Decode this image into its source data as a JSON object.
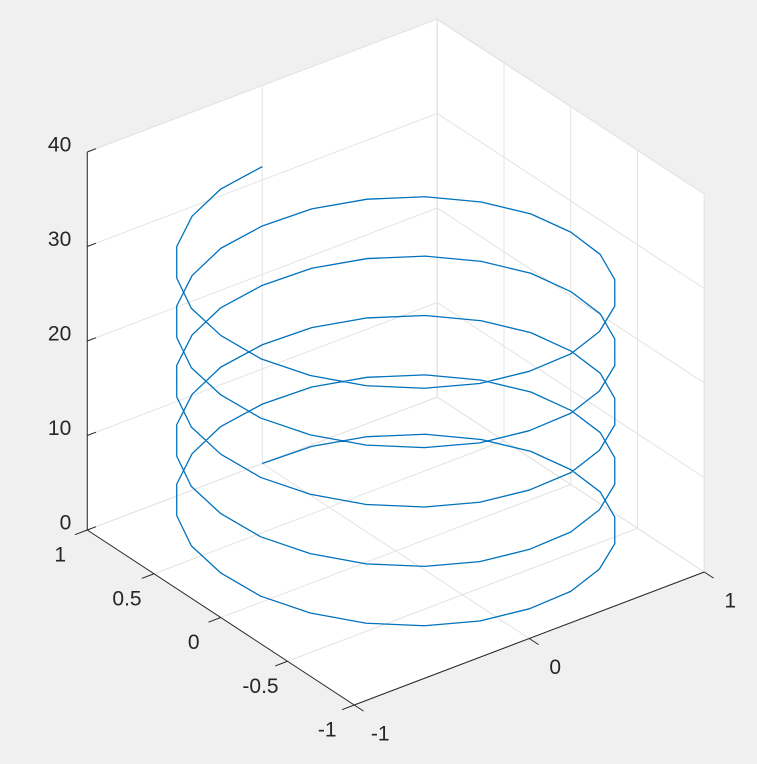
{
  "chart_data": {
    "type": "line3d",
    "color": "#0072bd",
    "grid": true,
    "xlim": [
      -1,
      1
    ],
    "ylim": [
      -1,
      1
    ],
    "zlim": [
      0,
      40
    ],
    "xticks": [
      -1,
      0,
      1
    ],
    "yticks": [
      -1,
      -0.5,
      0,
      0.5,
      1
    ],
    "zticks": [
      0,
      10,
      20,
      30,
      40
    ],
    "x": [
      0,
      0.26,
      0.5,
      0.71,
      0.87,
      0.97,
      1,
      0.97,
      0.87,
      0.71,
      0.5,
      0.26,
      0,
      -0.26,
      -0.5,
      -0.71,
      -0.87,
      -0.97,
      -1,
      -0.97,
      -0.87,
      -0.71,
      -0.5,
      -0.26,
      0,
      0.26,
      0.5,
      0.71,
      0.87,
      0.97,
      1,
      0.97,
      0.87,
      0.71,
      0.5,
      0.26,
      0,
      -0.26,
      -0.5,
      -0.71,
      -0.87,
      -0.97,
      -1,
      -0.97,
      -0.87,
      -0.71,
      -0.5,
      -0.26,
      0,
      0.26,
      0.5,
      0.71,
      0.87,
      0.97,
      1,
      0.97,
      0.87,
      0.71,
      0.5,
      0.26,
      0,
      -0.26,
      -0.5,
      -0.71,
      -0.87,
      -0.97,
      -1,
      -0.97,
      -0.87,
      -0.71,
      -0.5,
      -0.26,
      0,
      0.26,
      0.5,
      0.71,
      0.87,
      0.97,
      1,
      0.97,
      0.87,
      0.71,
      0.5,
      0.26,
      0,
      -0.26,
      -0.5,
      -0.71,
      -0.87,
      -0.97,
      -1,
      -0.97,
      -0.87,
      -0.71,
      -0.5,
      -0.26,
      0,
      0.26,
      0.5,
      0.71,
      0.87,
      0.97,
      1,
      0.97,
      0.87,
      0.71,
      0.5,
      0.26,
      0,
      -0.26,
      -0.5,
      -0.71,
      -0.87,
      -0.97,
      -1,
      -0.97,
      -0.87,
      -0.71,
      -0.5,
      -0.26,
      0
    ],
    "y": [
      1,
      0.97,
      0.87,
      0.71,
      0.5,
      0.26,
      0,
      -0.26,
      -0.5,
      -0.71,
      -0.87,
      -0.97,
      -1,
      -0.97,
      -0.87,
      -0.71,
      -0.5,
      -0.26,
      0,
      0.26,
      0.5,
      0.71,
      0.87,
      0.97,
      1,
      0.97,
      0.87,
      0.71,
      0.5,
      0.26,
      0,
      -0.26,
      -0.5,
      -0.71,
      -0.87,
      -0.97,
      -1,
      -0.97,
      -0.87,
      -0.71,
      -0.5,
      -0.26,
      0,
      0.26,
      0.5,
      0.71,
      0.87,
      0.97,
      1,
      0.97,
      0.87,
      0.71,
      0.5,
      0.26,
      0,
      -0.26,
      -0.5,
      -0.71,
      -0.87,
      -0.97,
      -1,
      -0.97,
      -0.87,
      -0.71,
      -0.5,
      -0.26,
      0,
      0.26,
      0.5,
      0.71,
      0.87,
      0.97,
      1,
      0.97,
      0.87,
      0.71,
      0.5,
      0.26,
      0,
      -0.26,
      -0.5,
      -0.71,
      -0.87,
      -0.97,
      -1,
      -0.97,
      -0.87,
      -0.71,
      -0.5,
      -0.26,
      0,
      0.26,
      0.5,
      0.71,
      0.87,
      0.97,
      1,
      0.97,
      0.87,
      0.71,
      0.5,
      0.26,
      0,
      -0.26,
      -0.5,
      -0.71,
      -0.87,
      -0.97,
      -1,
      -0.97,
      -0.87,
      -0.71,
      -0.5,
      -0.26,
      0,
      0.26,
      0.5,
      0.71,
      0.87,
      0.97,
      1
    ],
    "z": [
      0,
      0.262,
      0.524,
      0.785,
      1.047,
      1.309,
      1.571,
      1.833,
      2.094,
      2.356,
      2.618,
      2.88,
      3.142,
      3.403,
      3.665,
      3.927,
      4.189,
      4.451,
      4.712,
      4.974,
      5.236,
      5.498,
      5.76,
      6.021,
      6.283,
      6.545,
      6.807,
      7.069,
      7.33,
      7.592,
      7.854,
      8.116,
      8.378,
      8.639,
      8.901,
      9.163,
      9.425,
      9.687,
      9.948,
      10.21,
      10.472,
      10.734,
      10.996,
      11.257,
      11.519,
      11.781,
      12.043,
      12.305,
      12.566,
      12.828,
      13.09,
      13.352,
      13.614,
      13.875,
      14.137,
      14.399,
      14.661,
      14.923,
      15.184,
      15.446,
      15.708,
      15.97,
      16.232,
      16.493,
      16.755,
      17.017,
      17.279,
      17.541,
      17.802,
      18.064,
      18.326,
      18.588,
      18.85,
      19.111,
      19.373,
      19.635,
      19.897,
      20.159,
      20.42,
      20.682,
      20.944,
      21.206,
      21.468,
      21.729,
      21.991,
      22.253,
      22.515,
      22.777,
      23.038,
      23.3,
      23.562,
      23.824,
      24.086,
      24.347,
      24.609,
      24.871,
      25.133,
      25.394,
      25.656,
      25.918,
      26.18,
      26.442,
      26.704,
      26.965,
      27.227,
      27.489,
      27.751,
      28.013,
      28.274,
      28.536,
      28.798,
      29.06,
      29.322,
      29.583,
      29.845,
      30.107,
      30.369,
      30.631,
      30.892,
      31.154,
      31.416
    ]
  }
}
